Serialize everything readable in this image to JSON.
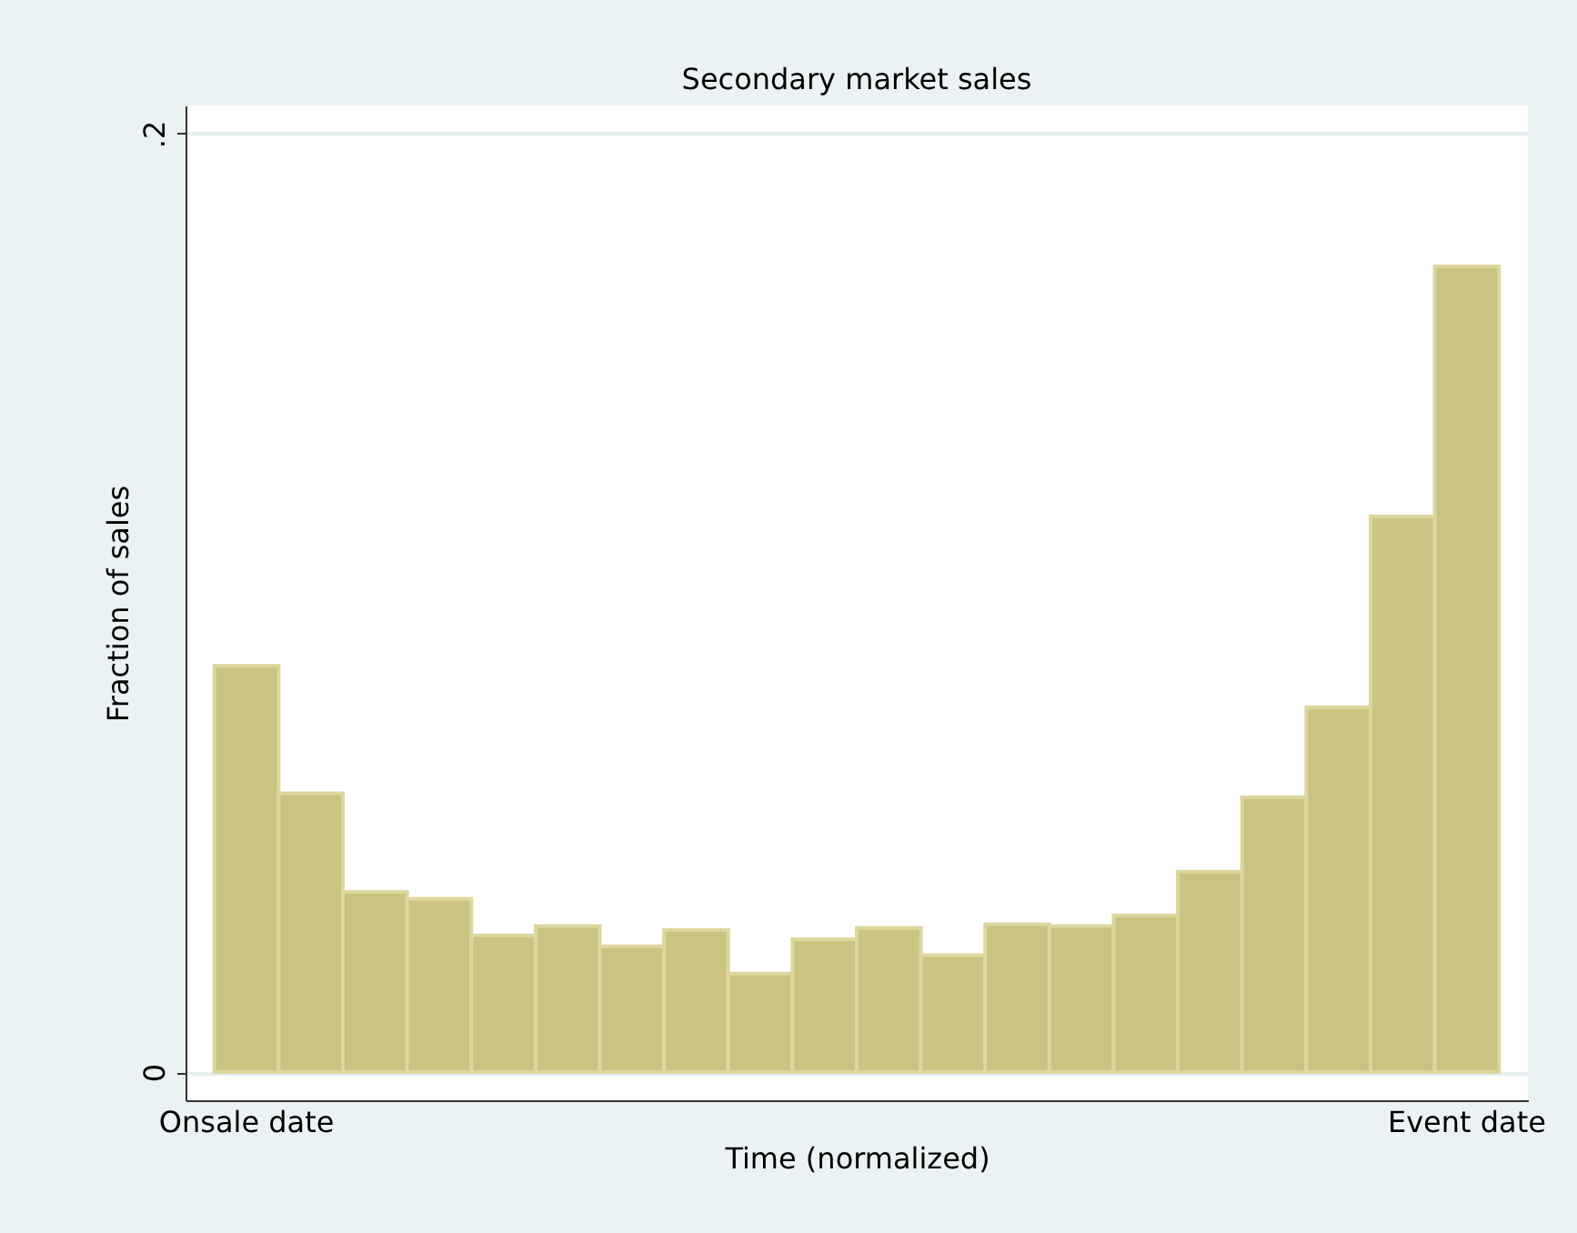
{
  "chart_data": {
    "type": "bar",
    "title": "Secondary market sales",
    "xlabel": "Time (normalized)",
    "ylabel": "Fraction of sales",
    "categories": [
      "Onsale date",
      null,
      null,
      null,
      null,
      null,
      null,
      null,
      null,
      null,
      null,
      null,
      null,
      null,
      null,
      null,
      null,
      null,
      null,
      "Event date"
    ],
    "values": [
      0.0866,
      0.0594,
      0.0384,
      0.0369,
      0.0291,
      0.0311,
      0.0268,
      0.0303,
      0.021,
      0.0283,
      0.0307,
      0.0249,
      0.0315,
      0.0311,
      0.0334,
      0.0427,
      0.0586,
      0.0777,
      0.1184,
      0.1717
    ],
    "color": "#cbc382",
    "ylim": [
      -0.006,
      0.206
    ],
    "yticks": [
      {
        "value": 0,
        "label": "0"
      },
      {
        "value": 0.2,
        "label": ".2"
      }
    ],
    "grid": "y"
  }
}
